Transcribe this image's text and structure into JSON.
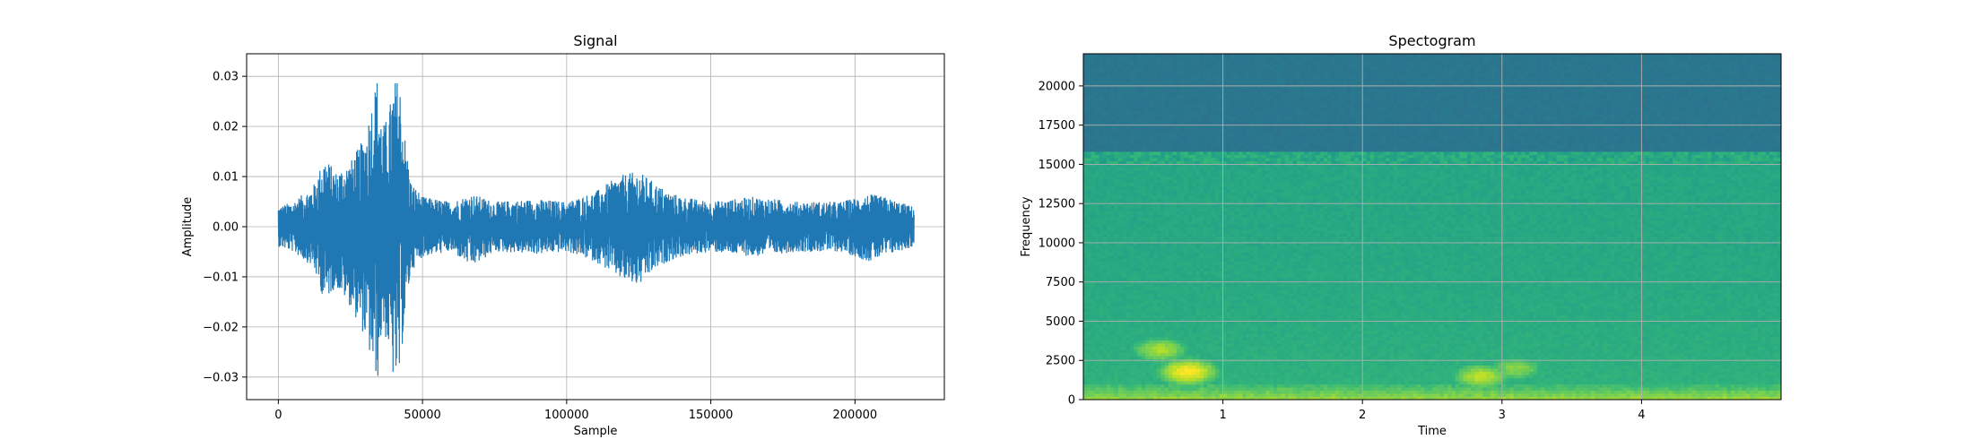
{
  "chart_data": [
    {
      "type": "line",
      "title": "Signal",
      "xlabel": "Sample",
      "ylabel": "Amplitude",
      "xlim": [
        -11000,
        231000
      ],
      "ylim": [
        -0.0345,
        0.0345
      ],
      "grid": true,
      "color": "#1f77b4",
      "xticks": [
        0,
        50000,
        100000,
        150000,
        200000
      ],
      "xticklabels": [
        "0",
        "50000",
        "100000",
        "150000",
        "200000"
      ],
      "yticks": [
        -0.03,
        -0.02,
        -0.01,
        0.0,
        0.01,
        0.02,
        0.03
      ],
      "yticklabels": [
        "−0.03",
        "−0.02",
        "−0.01",
        "0.00",
        "0.01",
        "0.02",
        "0.03"
      ],
      "n_samples": 220500,
      "envelope": {
        "x": [
          0,
          5000,
          12000,
          16000,
          20000,
          25000,
          30000,
          33000,
          34500,
          36000,
          38000,
          40000,
          42000,
          43500,
          46000,
          50000,
          55000,
          60000,
          67000,
          70000,
          75000,
          90000,
          100000,
          105000,
          110000,
          115000,
          120000,
          125000,
          130000,
          135000,
          140000,
          150000,
          165000,
          180000,
          195000,
          205000,
          210000,
          215000,
          220500
        ],
        "upper": [
          0.004,
          0.005,
          0.008,
          0.014,
          0.011,
          0.013,
          0.018,
          0.027,
          0.0305,
          0.02,
          0.022,
          0.029,
          0.03,
          0.02,
          0.009,
          0.006,
          0.0055,
          0.005,
          0.0065,
          0.006,
          0.005,
          0.0055,
          0.005,
          0.006,
          0.007,
          0.009,
          0.0105,
          0.011,
          0.009,
          0.007,
          0.006,
          0.005,
          0.006,
          0.005,
          0.005,
          0.0065,
          0.006,
          0.005,
          0.004
        ],
        "lower": [
          -0.004,
          -0.005,
          -0.008,
          -0.015,
          -0.012,
          -0.016,
          -0.022,
          -0.029,
          -0.0305,
          -0.02,
          -0.024,
          -0.031,
          -0.031,
          -0.02,
          -0.009,
          -0.006,
          -0.0055,
          -0.005,
          -0.008,
          -0.007,
          -0.005,
          -0.0055,
          -0.005,
          -0.006,
          -0.007,
          -0.009,
          -0.011,
          -0.012,
          -0.009,
          -0.007,
          -0.006,
          -0.005,
          -0.006,
          -0.005,
          -0.005,
          -0.007,
          -0.006,
          -0.005,
          -0.004
        ]
      }
    },
    {
      "type": "heatmap",
      "title": "Spectogram",
      "xlabel": "Time",
      "ylabel": "Frequency",
      "xlim": [
        0.0,
        5.0
      ],
      "ylim": [
        0,
        22050
      ],
      "grid": true,
      "colormap": "viridis",
      "xticks": [
        1,
        2,
        3,
        4
      ],
      "xticklabels": [
        "1",
        "2",
        "3",
        "4"
      ],
      "yticks": [
        0,
        2500,
        5000,
        7500,
        10000,
        12500,
        15000,
        17500,
        20000
      ],
      "yticklabels": [
        "0",
        "2500",
        "5000",
        "7500",
        "10000",
        "12500",
        "15000",
        "17500",
        "20000"
      ],
      "cutoff_frequency": 15600,
      "energy_regions": [
        {
          "t": 0.75,
          "f": 1800,
          "level": 0.98
        },
        {
          "t": 0.55,
          "f": 3200,
          "level": 0.85
        },
        {
          "t": 2.85,
          "f": 1500,
          "level": 0.88
        },
        {
          "t": 3.1,
          "f": 2000,
          "level": 0.8
        }
      ]
    }
  ]
}
